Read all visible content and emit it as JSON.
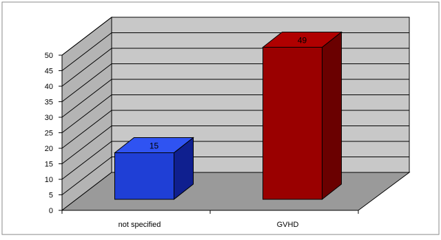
{
  "chart_data": {
    "type": "bar",
    "categories": [
      "not specified",
      "GVHD"
    ],
    "values": [
      15,
      49
    ],
    "data_labels": [
      "15",
      "49"
    ],
    "yticks": [
      "0",
      "5",
      "10",
      "15",
      "20",
      "25",
      "30",
      "35",
      "40",
      "45",
      "50"
    ],
    "ylim": [
      0,
      50
    ],
    "grid": true,
    "three_d": true,
    "title": "",
    "xlabel": "",
    "ylabel": "",
    "colors": {
      "bars": [
        "#1f3fd6",
        "#9a0000"
      ],
      "bar_tops": [
        "#2f53f2",
        "#b00000"
      ],
      "bar_sides": [
        "#0f1f8f",
        "#6a0000"
      ],
      "back_wall": "#c8c8c8",
      "side_wall": "#b4b4b4",
      "floor": "#9a9a9a",
      "gridline": "#000000",
      "frame_border": "#8a8a8a"
    }
  }
}
